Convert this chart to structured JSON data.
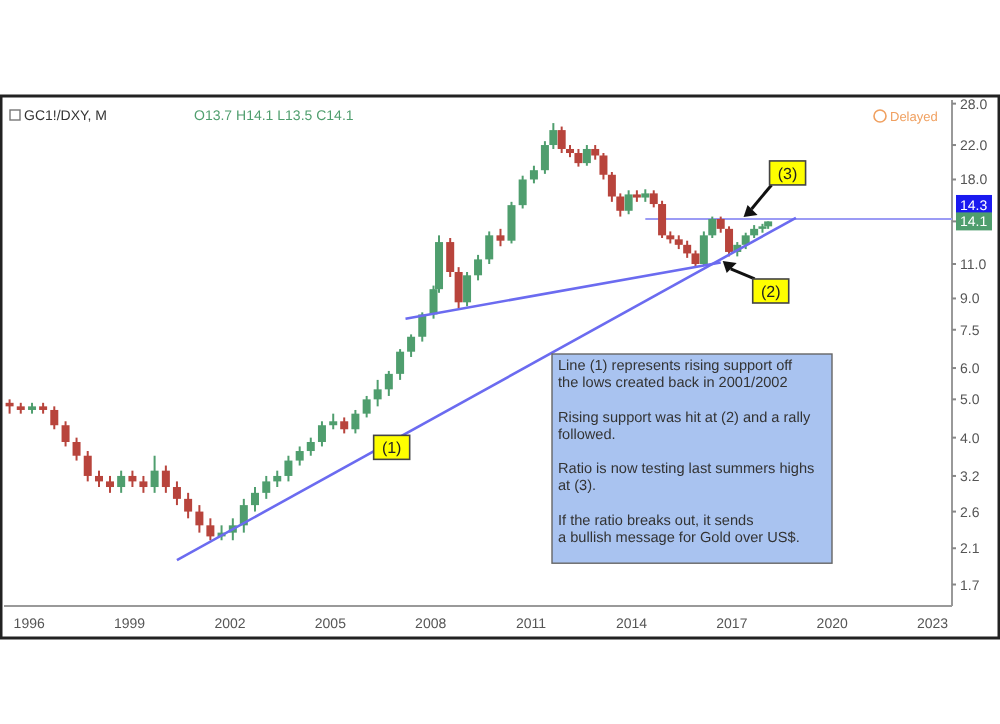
{
  "chart_data": {
    "type": "candlestick",
    "title": "GC1!/DXY, M",
    "subtitle": "O13.7 H14.1 L13.5 C14.1",
    "x": [
      "1995-06",
      "1995-10",
      "1996-02",
      "1996-06",
      "1996-10",
      "1997-02",
      "1997-06",
      "1997-10",
      "1998-02",
      "1998-06",
      "1998-10",
      "1999-02",
      "1999-06",
      "1999-10",
      "2000-02",
      "2000-06",
      "2000-10",
      "2001-02",
      "2001-06",
      "2001-10",
      "2002-02",
      "2002-06",
      "2002-10",
      "2003-02",
      "2003-06",
      "2003-10",
      "2004-02",
      "2004-06",
      "2004-10",
      "2005-02",
      "2005-06",
      "2005-10",
      "2006-02",
      "2006-06",
      "2006-10",
      "2007-02",
      "2007-06",
      "2007-10",
      "2008-02",
      "2008-04",
      "2008-08",
      "2008-11",
      "2009-02",
      "2009-06",
      "2009-10",
      "2010-02",
      "2010-06",
      "2010-10",
      "2011-02",
      "2011-06",
      "2011-09",
      "2011-12",
      "2012-03",
      "2012-06",
      "2012-09",
      "2012-12",
      "2013-03",
      "2013-06",
      "2013-09",
      "2013-12",
      "2014-03",
      "2014-06",
      "2014-09",
      "2014-12",
      "2015-03",
      "2015-06",
      "2015-09",
      "2015-12",
      "2016-03",
      "2016-06",
      "2016-09",
      "2016-12",
      "2017-03",
      "2017-06",
      "2017-09",
      "2017-12",
      "2018-02"
    ],
    "ohlc": [
      [
        4.9,
        5.0,
        4.6,
        4.8
      ],
      [
        4.8,
        4.9,
        4.6,
        4.7
      ],
      [
        4.7,
        4.9,
        4.6,
        4.8
      ],
      [
        4.8,
        4.9,
        4.6,
        4.7
      ],
      [
        4.7,
        4.8,
        4.2,
        4.3
      ],
      [
        4.3,
        4.4,
        3.8,
        3.9
      ],
      [
        3.9,
        4.0,
        3.5,
        3.6
      ],
      [
        3.6,
        3.7,
        3.1,
        3.2
      ],
      [
        3.2,
        3.3,
        3.0,
        3.1
      ],
      [
        3.1,
        3.2,
        2.9,
        3.0
      ],
      [
        3.0,
        3.3,
        2.9,
        3.2
      ],
      [
        3.2,
        3.3,
        3.0,
        3.1
      ],
      [
        3.1,
        3.2,
        2.9,
        3.0
      ],
      [
        3.0,
        3.6,
        2.9,
        3.3
      ],
      [
        3.3,
        3.4,
        2.9,
        3.0
      ],
      [
        3.0,
        3.1,
        2.7,
        2.8
      ],
      [
        2.8,
        2.9,
        2.5,
        2.6
      ],
      [
        2.6,
        2.7,
        2.3,
        2.4
      ],
      [
        2.4,
        2.5,
        2.2,
        2.25
      ],
      [
        2.25,
        2.4,
        2.2,
        2.3
      ],
      [
        2.3,
        2.5,
        2.2,
        2.4
      ],
      [
        2.4,
        2.8,
        2.3,
        2.7
      ],
      [
        2.7,
        3.0,
        2.6,
        2.9
      ],
      [
        2.9,
        3.2,
        2.8,
        3.1
      ],
      [
        3.1,
        3.3,
        3.0,
        3.2
      ],
      [
        3.2,
        3.6,
        3.1,
        3.5
      ],
      [
        3.5,
        3.8,
        3.4,
        3.7
      ],
      [
        3.7,
        4.0,
        3.6,
        3.9
      ],
      [
        3.9,
        4.4,
        3.8,
        4.3
      ],
      [
        4.3,
        4.6,
        4.2,
        4.4
      ],
      [
        4.4,
        4.5,
        4.1,
        4.2
      ],
      [
        4.2,
        4.7,
        4.1,
        4.6
      ],
      [
        4.6,
        5.1,
        4.5,
        5.0
      ],
      [
        5.0,
        5.6,
        4.8,
        5.3
      ],
      [
        5.3,
        5.9,
        5.1,
        5.8
      ],
      [
        5.8,
        6.7,
        5.6,
        6.6
      ],
      [
        6.6,
        7.3,
        6.4,
        7.2
      ],
      [
        7.2,
        8.3,
        7.0,
        8.2
      ],
      [
        8.2,
        9.7,
        8.0,
        9.5
      ],
      [
        9.5,
        13.0,
        9.3,
        12.5
      ],
      [
        12.5,
        12.8,
        10.2,
        10.5
      ],
      [
        10.5,
        10.8,
        8.5,
        8.8
      ],
      [
        8.8,
        10.5,
        8.6,
        10.3
      ],
      [
        10.3,
        11.6,
        10.0,
        11.3
      ],
      [
        11.3,
        13.3,
        11.0,
        13.0
      ],
      [
        13.0,
        13.5,
        12.2,
        12.6
      ],
      [
        12.6,
        15.8,
        12.4,
        15.5
      ],
      [
        15.5,
        18.4,
        15.2,
        18.0
      ],
      [
        18.0,
        19.5,
        17.6,
        19.0
      ],
      [
        19.0,
        22.5,
        18.6,
        22.0
      ],
      [
        22.0,
        25.0,
        21.5,
        24.0
      ],
      [
        24.0,
        24.5,
        21.0,
        21.5
      ],
      [
        21.5,
        22.0,
        20.5,
        21.0
      ],
      [
        21.0,
        21.5,
        19.4,
        19.8
      ],
      [
        19.8,
        22.0,
        19.5,
        21.5
      ],
      [
        21.5,
        22.0,
        20.2,
        20.7
      ],
      [
        20.7,
        21.0,
        18.0,
        18.5
      ],
      [
        18.5,
        18.8,
        15.8,
        16.3
      ],
      [
        16.3,
        16.6,
        14.5,
        15.0
      ],
      [
        15.0,
        16.9,
        14.7,
        16.5
      ],
      [
        16.5,
        16.9,
        15.8,
        16.2
      ],
      [
        16.2,
        17.0,
        15.8,
        16.6
      ],
      [
        16.6,
        16.9,
        15.3,
        15.6
      ],
      [
        15.6,
        15.9,
        12.8,
        13.0
      ],
      [
        13.0,
        13.3,
        12.4,
        12.7
      ],
      [
        12.7,
        13.0,
        12.0,
        12.3
      ],
      [
        12.3,
        12.6,
        11.4,
        11.7
      ],
      [
        11.7,
        11.9,
        10.8,
        11.0
      ],
      [
        11.0,
        13.3,
        10.9,
        13.0
      ],
      [
        13.0,
        14.5,
        12.8,
        14.3
      ],
      [
        14.3,
        14.5,
        13.2,
        13.5
      ],
      [
        13.5,
        13.7,
        11.5,
        11.8
      ],
      [
        11.8,
        12.5,
        11.5,
        12.3
      ],
      [
        12.3,
        13.2,
        12.0,
        13.0
      ],
      [
        13.0,
        13.8,
        12.8,
        13.5
      ],
      [
        13.5,
        13.9,
        13.2,
        13.7
      ],
      [
        13.7,
        14.1,
        13.5,
        14.1
      ]
    ],
    "series": [
      {
        "type": "line",
        "color": "#6b6bf0",
        "x": [
          "2000-06",
          "2018-12"
        ],
        "values": [
          1.96,
          14.4
        ]
      },
      {
        "type": "line",
        "color": "#6b6bf0",
        "x": [
          "2007-04",
          "2016-09"
        ],
        "values": [
          8.0,
          11.1
        ]
      }
    ],
    "log": true,
    "ylim": [
      1.5,
      28.6
    ],
    "yticks": [
      {
        "value": 1.7,
        "label": "1.7"
      },
      {
        "value": 2.1,
        "label": "2.1"
      },
      {
        "value": 2.6,
        "label": "2.6"
      },
      {
        "value": 3.2,
        "label": "3.2"
      },
      {
        "value": 4,
        "label": "4.0"
      },
      {
        "value": 5,
        "label": "5.0"
      },
      {
        "value": 6,
        "label": "6.0"
      },
      {
        "value": 7.5,
        "label": "7.5"
      },
      {
        "value": 9,
        "label": "9.0"
      },
      {
        "value": 11,
        "label": "11.0"
      },
      {
        "value": 14.1,
        "label": "14.1"
      },
      {
        "value": 18,
        "label": "18.0"
      },
      {
        "value": 22,
        "label": "22.0"
      },
      {
        "value": 28,
        "label": "28.0"
      }
    ],
    "xlim": [
      "1995-04",
      "2023-08"
    ],
    "xticks": [
      "1996",
      "1999",
      "2002",
      "2005",
      "2008",
      "2011",
      "2014",
      "2017",
      "2020",
      "2023"
    ],
    "ref_lines": [
      {
        "axis": "y",
        "value": 14.3,
        "label": "14.3",
        "color": "#9b9bf5"
      }
    ],
    "grid": false,
    "annotations": [
      "Delayed",
      "Line (1) represents rising support off\nthe lows created back in 2001/2002\n\nRising support was hit at (2) and a rally\nfollowed.\n\nRatio is now testing last summers highs\nat (3).\n\nIf the ratio breaks out, it sends\na bullish message for Gold over US$.",
      {
        "text": "(1)",
        "x": "2006-11",
        "y": 3.78
      },
      {
        "text": "(2)",
        "x": "2018-03",
        "y": 9.4
      },
      {
        "text": "(3)",
        "x": "2018-09",
        "y": 18.7
      }
    ]
  }
}
